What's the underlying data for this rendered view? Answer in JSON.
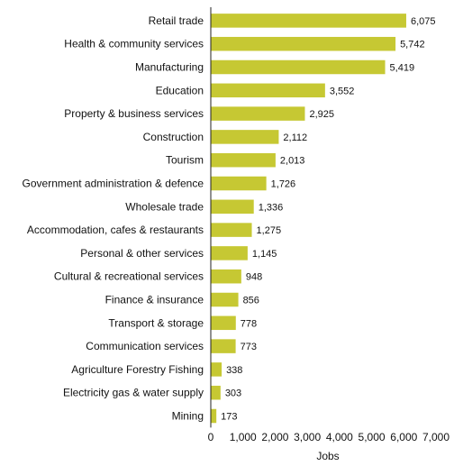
{
  "chart_data": {
    "type": "bar",
    "orientation": "horizontal",
    "categories": [
      "Retail trade",
      "Health & community services",
      "Manufacturing",
      "Education",
      "Property & business services",
      "Construction",
      "Tourism",
      "Government administration & defence",
      "Wholesale trade",
      "Accommodation, cafes & restaurants",
      "Personal & other services",
      "Cultural & recreational services",
      "Finance & insurance",
      "Transport & storage",
      "Communication services",
      "Agriculture Forestry Fishing",
      "Electricity gas & water supply",
      "Mining"
    ],
    "values": [
      6075,
      5742,
      5419,
      3552,
      2925,
      2112,
      2013,
      1726,
      1336,
      1275,
      1145,
      948,
      856,
      778,
      773,
      338,
      303,
      173
    ],
    "value_labels": [
      "6,075",
      "5,742",
      "5,419",
      "3,552",
      "2,925",
      "2,112",
      "2,013",
      "1,726",
      "1,336",
      "1,275",
      "1,145",
      "948",
      "856",
      "778",
      "773",
      "338",
      "303",
      "173"
    ],
    "xlim": [
      0,
      7000
    ],
    "xticks": [
      0,
      1000,
      2000,
      3000,
      4000,
      5000,
      6000,
      7000
    ],
    "xtick_labels": [
      "0",
      "1,000",
      "2,000",
      "3,000",
      "4,000",
      "5,000",
      "6,000",
      "7,000"
    ],
    "xlabel": "Jobs",
    "title": "",
    "grid": false,
    "legend": "none",
    "bar_color": "#c6c833"
  }
}
